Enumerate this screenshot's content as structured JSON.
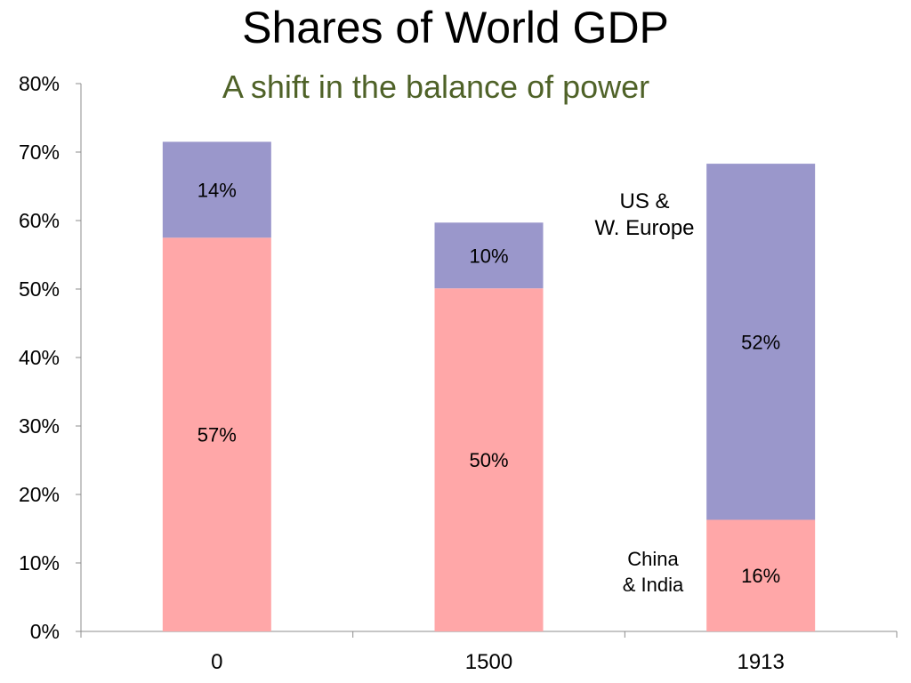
{
  "chart_data": {
    "type": "bar",
    "stacked": true,
    "title": "Shares of World GDP",
    "subtitle": "A shift in the balance of power",
    "categories": [
      "0",
      "1500",
      "1913"
    ],
    "series": [
      {
        "name": "China & India",
        "values": [
          57.5,
          50.1,
          16.3
        ],
        "labels": [
          "57%",
          "50%",
          "16%"
        ],
        "color": "#ffa7a8"
      },
      {
        "name": "US & W. Europe",
        "values": [
          14.0,
          9.6,
          52.0
        ],
        "labels": [
          "14%",
          "10%",
          "52%"
        ],
        "color": "#9a97cb"
      }
    ],
    "ylim": [
      0,
      80
    ],
    "yticks": [
      "0%",
      "10%",
      "20%",
      "30%",
      "40%",
      "50%",
      "60%",
      "70%",
      "80%"
    ],
    "grid": false,
    "annotations": [
      {
        "lines": [
          "US &",
          "W. Europe"
        ]
      },
      {
        "lines": [
          "China",
          "& India"
        ]
      }
    ],
    "subtitle_color": "#4f6228"
  }
}
